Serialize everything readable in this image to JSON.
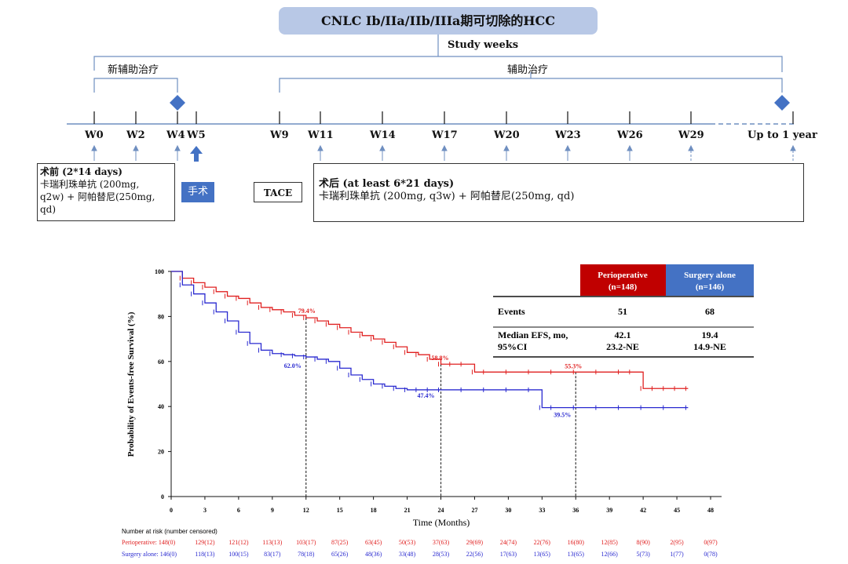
{
  "title": "CNLC Ib/IIa/IIb/IIIa期可切除的HCC",
  "study_weeks": "Study weeks",
  "phases": {
    "neo": "新辅助治疗",
    "adj": "辅助治疗"
  },
  "weeks": [
    "W0",
    "W2",
    "W4",
    "W5",
    "W9",
    "W11",
    "W14",
    "W17",
    "W20",
    "W23",
    "W26",
    "W29",
    "Up to 1 year"
  ],
  "pre_box": {
    "head": "术前 (2*14 days)",
    "l1": "卡瑞利珠单抗 (200mg,",
    "l2": "q2w) + 阿帕替尼(250mg,",
    "l3": "qd)"
  },
  "surgery": "手术",
  "tace": "TACE",
  "post_box": {
    "head": "术后 (at least 6*21 days)",
    "l1": "卡瑞利珠单抗 (200mg, q3w) + 阿帕替尼(250mg, qd)"
  },
  "colors": {
    "red": "#e02020",
    "blue": "#2a2ad0",
    "red_header": "#c00000",
    "blue_header": "#4472c4",
    "title_bg": "#b8c8e6"
  },
  "chart_data": {
    "type": "line",
    "xlabel": "Time (Months)",
    "ylabel": "Probability of Events-free Survival (%)",
    "xlim": [
      0,
      48
    ],
    "ylim": [
      0,
      100
    ],
    "xticks": [
      0,
      3,
      6,
      9,
      12,
      15,
      18,
      21,
      24,
      27,
      30,
      33,
      36,
      39,
      42,
      45,
      48
    ],
    "yticks": [
      0,
      20,
      40,
      60,
      80,
      100
    ],
    "series": [
      {
        "name": "Perioperative",
        "color": "#e02020",
        "x": [
          0,
          1,
          2,
          3,
          4,
          5,
          6,
          7,
          8,
          9,
          10,
          11,
          12,
          13,
          14,
          15,
          16,
          17,
          18,
          19,
          20,
          21,
          22,
          23,
          24,
          25,
          26,
          27,
          28,
          30,
          32,
          34,
          36,
          38,
          40,
          41,
          42,
          43,
          44,
          45,
          46
        ],
        "y": [
          100,
          97,
          95,
          93,
          91,
          89,
          88,
          86,
          84,
          83,
          82,
          80.5,
          79.4,
          78,
          76.5,
          75,
          73,
          71.5,
          70,
          68.5,
          66.5,
          64,
          63,
          61,
          58.8,
          58.8,
          58.8,
          55.3,
          55.3,
          55.3,
          55.3,
          55.3,
          55.3,
          55.3,
          55.3,
          55.3,
          48,
          48,
          48,
          48,
          48
        ]
      },
      {
        "name": "Surgery alone",
        "color": "#2a2ad0",
        "x": [
          0,
          1,
          2,
          3,
          4,
          5,
          6,
          7,
          8,
          9,
          10,
          11,
          12,
          13,
          14,
          15,
          16,
          17,
          18,
          19,
          20,
          21,
          22,
          23,
          24,
          26,
          28,
          30,
          32,
          33,
          34,
          36,
          38,
          40,
          42,
          44,
          46
        ],
        "y": [
          100,
          94,
          90,
          86,
          82,
          78,
          73,
          68,
          65,
          63.5,
          63,
          62.5,
          62,
          61,
          60,
          57,
          54,
          52,
          50,
          49,
          48,
          47.4,
          47.4,
          47.4,
          47.4,
          47.4,
          47.4,
          47.4,
          47.4,
          39.5,
          39.5,
          39.5,
          39.5,
          39.5,
          39.5,
          39.5,
          39.5
        ]
      }
    ],
    "annotations": [
      {
        "x": 12,
        "y": 79.4,
        "text": "79.4%",
        "color": "#e02020"
      },
      {
        "x": 12,
        "y": 62.0,
        "text": "62.0%",
        "color": "#2a2ad0"
      },
      {
        "x": 24,
        "y": 58.8,
        "text": "58.8%",
        "color": "#e02020"
      },
      {
        "x": 24,
        "y": 47.4,
        "text": "47.4%",
        "color": "#2a2ad0"
      },
      {
        "x": 36,
        "y": 55.3,
        "text": "55.3%",
        "color": "#e02020"
      },
      {
        "x": 36,
        "y": 39.5,
        "text": "39.5%",
        "color": "#2a2ad0"
      }
    ],
    "table": {
      "headers": [
        {
          "line1": "Perioperative",
          "line2": "(n=148)"
        },
        {
          "line1": "Surgery alone",
          "line2": "(n=146)"
        }
      ],
      "rows": [
        {
          "label1": "Events",
          "label2": "",
          "p1": "51",
          "p2": "",
          "s1": "68",
          "s2": ""
        },
        {
          "label1": "Median EFS, mo,",
          "label2": "95%CI",
          "p1": "42.1",
          "p2": "23.2-NE",
          "s1": "19.4",
          "s2": "14.9-NE"
        }
      ]
    },
    "risk": {
      "title": "Number at risk (number censored)",
      "peri": [
        "Perioperative: 148(0)",
        "129(12)",
        "121(12)",
        "113(13)",
        "103(17)",
        "87(25)",
        "63(45)",
        "50(53)",
        "37(63)",
        "29(69)",
        "24(74)",
        "22(76)",
        "16(80)",
        "12(85)",
        "8(90)",
        "2(95)",
        "0(97)"
      ],
      "surg": [
        "Surgery alone: 146(0)",
        "118(13)",
        "100(15)",
        "83(17)",
        "78(18)",
        "65(26)",
        "48(36)",
        "33(48)",
        "28(53)",
        "22(56)",
        "17(63)",
        "13(65)",
        "13(65)",
        "12(66)",
        "5(73)",
        "1(77)",
        "0(78)"
      ]
    }
  }
}
